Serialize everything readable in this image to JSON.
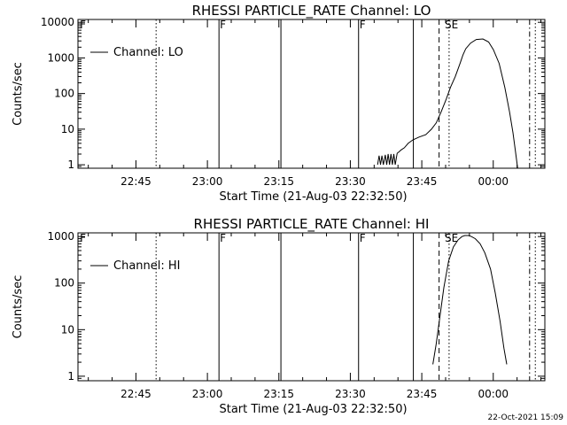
{
  "footer_timestamp": "22-Oct-2021 15:09",
  "chart_data": [
    {
      "type": "line",
      "title": "RHESSI PARTICLE_RATE Channel: LO",
      "xlabel": "Start Time (21-Aug-03 22:32:50)",
      "ylabel": "Counts/sec",
      "y_scale": "log",
      "xlim_minutes_after_start": [
        0,
        98
      ],
      "ylim": [
        0.8,
        12000
      ],
      "yticks": [
        {
          "value": 1,
          "label": "1"
        },
        {
          "value": 10,
          "label": "10"
        },
        {
          "value": 100,
          "label": "100"
        },
        {
          "value": 1000,
          "label": "1000"
        },
        {
          "value": 10000,
          "label": "10000"
        }
      ],
      "xticks": [
        {
          "minutes": 12.17,
          "label": "22:45"
        },
        {
          "minutes": 27.17,
          "label": "23:00"
        },
        {
          "minutes": 42.17,
          "label": "23:15"
        },
        {
          "minutes": 57.17,
          "label": "23:30"
        },
        {
          "minutes": 72.17,
          "label": "23:45"
        },
        {
          "minutes": 87.17,
          "label": "00:00"
        }
      ],
      "legend": {
        "placement": "top-left",
        "label": "Channel: LO"
      },
      "series": [
        {
          "name": "Channel: LO",
          "x": [
            62.9,
            63.2,
            63.5,
            63.8,
            64.1,
            64.5,
            64.8,
            65.1,
            65.4,
            65.7,
            66.0,
            66.3,
            66.6,
            67.0,
            67.4,
            67.8,
            68.5,
            69.3,
            70.3,
            71.6,
            73.0,
            74.2,
            75.2,
            76.2,
            77.3,
            78.2,
            79.2,
            80.2,
            80.8,
            81.4,
            82.4,
            83.6,
            85.0,
            86.2,
            87.2,
            88.4,
            89.6,
            90.6,
            91.3,
            91.8,
            92.3
          ],
          "y": [
            1,
            1.8,
            1,
            1.8,
            1,
            1.9,
            1,
            2,
            1,
            2,
            1,
            2,
            1,
            2.1,
            2.3,
            2.6,
            3,
            4,
            5,
            6,
            7,
            10,
            15,
            30,
            70,
            150,
            300,
            700,
            1200,
            1800,
            2600,
            3300,
            3400,
            2800,
            1700,
            700,
            150,
            30,
            8,
            2.5,
            0.8
          ]
        }
      ],
      "annotations": [
        {
          "text": "F",
          "minutes": 0.2
        },
        {
          "text": "F",
          "minutes": 29.6
        },
        {
          "text": "F",
          "minutes": 58.9
        },
        {
          "text": "SE",
          "minutes": 76.8
        }
      ],
      "vertical_lines": [
        {
          "minutes": 16.4,
          "style": "dotted"
        },
        {
          "minutes": 29.6,
          "style": "solid"
        },
        {
          "minutes": 42.6,
          "style": "solid"
        },
        {
          "minutes": 58.9,
          "style": "solid"
        },
        {
          "minutes": 70.4,
          "style": "solid"
        },
        {
          "minutes": 75.8,
          "style": "dashed"
        },
        {
          "minutes": 77.9,
          "style": "dotted"
        },
        {
          "minutes": 94.8,
          "style": "dashdot"
        },
        {
          "minutes": 96.0,
          "style": "dotted"
        }
      ]
    },
    {
      "type": "line",
      "title": "RHESSI PARTICLE_RATE Channel: HI",
      "xlabel": "Start Time (21-Aug-03 22:32:50)",
      "ylabel": "Counts/sec",
      "y_scale": "log",
      "xlim_minutes_after_start": [
        0,
        98
      ],
      "ylim": [
        0.8,
        1200
      ],
      "yticks": [
        {
          "value": 1,
          "label": "1"
        },
        {
          "value": 10,
          "label": "10"
        },
        {
          "value": 100,
          "label": "100"
        },
        {
          "value": 1000,
          "label": "1000"
        }
      ],
      "xticks": [
        {
          "minutes": 12.17,
          "label": "22:45"
        },
        {
          "minutes": 27.17,
          "label": "23:00"
        },
        {
          "minutes": 42.17,
          "label": "23:15"
        },
        {
          "minutes": 57.17,
          "label": "23:30"
        },
        {
          "minutes": 72.17,
          "label": "23:45"
        },
        {
          "minutes": 87.17,
          "label": "00:00"
        }
      ],
      "legend": {
        "placement": "top-left",
        "label": "Channel: HI"
      },
      "series": [
        {
          "name": "Channel: HI",
          "x": [
            74.5,
            75.2,
            76.0,
            76.8,
            77.8,
            78.8,
            79.8,
            80.6,
            81.2,
            82.0,
            82.6,
            83.4,
            84.4,
            85.4,
            86.6,
            87.6,
            88.6,
            89.4,
            90.0
          ],
          "y": [
            1.8,
            5,
            20,
            80,
            300,
            600,
            850,
            1000,
            1050,
            1050,
            1000,
            900,
            700,
            450,
            200,
            60,
            15,
            4,
            1.8
          ]
        }
      ],
      "annotations": [
        {
          "text": "F",
          "minutes": 0.2
        },
        {
          "text": "F",
          "minutes": 29.6
        },
        {
          "text": "F",
          "minutes": 58.9
        },
        {
          "text": "SE",
          "minutes": 76.8
        }
      ],
      "vertical_lines": [
        {
          "minutes": 16.4,
          "style": "dotted"
        },
        {
          "minutes": 29.6,
          "style": "solid"
        },
        {
          "minutes": 42.6,
          "style": "solid"
        },
        {
          "minutes": 58.9,
          "style": "solid"
        },
        {
          "minutes": 70.4,
          "style": "solid"
        },
        {
          "minutes": 75.8,
          "style": "dashed"
        },
        {
          "minutes": 77.9,
          "style": "dotted"
        },
        {
          "minutes": 94.8,
          "style": "dashdot"
        },
        {
          "minutes": 96.0,
          "style": "dotted"
        }
      ]
    }
  ]
}
